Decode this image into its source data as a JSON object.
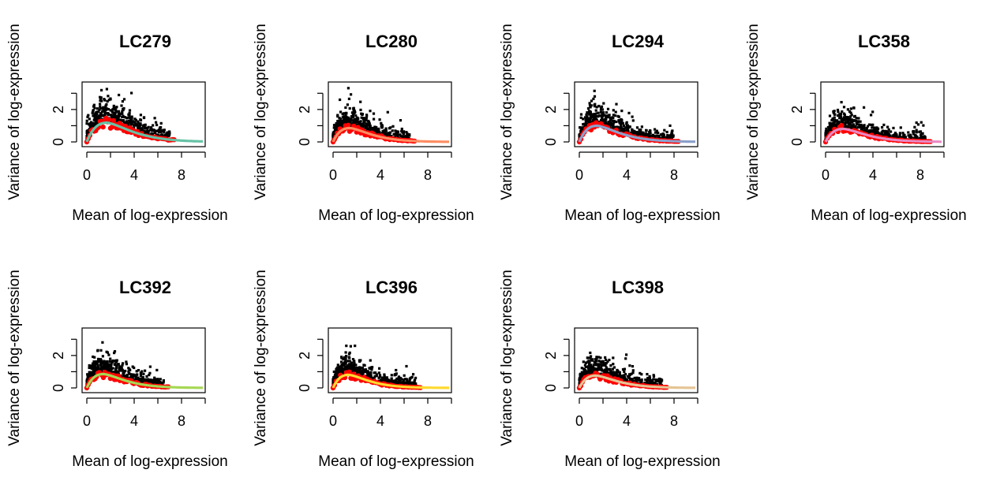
{
  "chart_data": [
    {
      "type": "scatter",
      "title": "LC279",
      "xlabel": "Mean of log-expression",
      "ylabel": "Variance of log-expression",
      "xlim": [
        -0.4,
        10
      ],
      "ylim": [
        0,
        3.5
      ],
      "xticks": [
        "0",
        "4",
        "8"
      ],
      "yticks": [
        "0",
        "2"
      ],
      "grid": false,
      "peak": 1.25,
      "peak_x": 1.7,
      "extent": 7.0,
      "trend_color": "#66c2a5",
      "spike_color": "#ff0000"
    },
    {
      "type": "scatter",
      "title": "LC280",
      "xlabel": "Mean of log-expression",
      "ylabel": "Variance of log-expression",
      "xlim": [
        -0.4,
        10
      ],
      "ylim": [
        0,
        3.5
      ],
      "xticks": [
        "0",
        "4",
        "8"
      ],
      "yticks": [
        "0",
        "2"
      ],
      "grid": false,
      "peak": 0.9,
      "peak_x": 1.4,
      "extent": 6.5,
      "trend_color": "#fc8d62",
      "spike_color": "#ff0000"
    },
    {
      "type": "scatter",
      "title": "LC294",
      "xlabel": "Mean of log-expression",
      "ylabel": "Variance of log-expression",
      "xlim": [
        -0.4,
        10
      ],
      "ylim": [
        0,
        3.5
      ],
      "xticks": [
        "0",
        "4",
        "8"
      ],
      "yticks": [
        "0",
        "2"
      ],
      "grid": false,
      "peak": 1.05,
      "peak_x": 1.5,
      "extent": 8.0,
      "trend_color": "#8da0cb",
      "spike_color": "#ff0000"
    },
    {
      "type": "scatter",
      "title": "LC358",
      "xlabel": "Mean of log-expression",
      "ylabel": "Variance of log-expression",
      "xlim": [
        -0.4,
        10
      ],
      "ylim": [
        0,
        3.5
      ],
      "xticks": [
        "0",
        "4",
        "8"
      ],
      "yticks": [
        "0",
        "2"
      ],
      "grid": false,
      "peak": 0.85,
      "peak_x": 1.5,
      "extent": 8.5,
      "trend_color": "#e78ac3",
      "spike_color": "#ff0000"
    },
    {
      "type": "scatter",
      "title": "LC392",
      "xlabel": "Mean of log-expression",
      "ylabel": "Variance of log-expression",
      "xlim": [
        -0.4,
        10
      ],
      "ylim": [
        0,
        3.5
      ],
      "xticks": [
        "0",
        "4",
        "8"
      ],
      "yticks": [
        "0",
        "2"
      ],
      "grid": false,
      "peak": 0.9,
      "peak_x": 1.4,
      "extent": 6.5,
      "trend_color": "#a6d854",
      "spike_color": "#ff0000"
    },
    {
      "type": "scatter",
      "title": "LC396",
      "xlabel": "Mean of log-expression",
      "ylabel": "Variance of log-expression",
      "xlim": [
        -0.4,
        10
      ],
      "ylim": [
        0,
        3.5
      ],
      "xticks": [
        "0",
        "4",
        "8"
      ],
      "yticks": [
        "0",
        "2"
      ],
      "grid": false,
      "peak": 0.85,
      "peak_x": 1.3,
      "extent": 7.0,
      "trend_color": "#ffd92f",
      "spike_color": "#ff0000"
    },
    {
      "type": "scatter",
      "title": "LC398",
      "xlabel": "Mean of log-expression",
      "ylabel": "Variance of log-expression",
      "xlim": [
        -0.4,
        10
      ],
      "ylim": [
        0,
        3.5
      ],
      "xticks": [
        "0",
        "4",
        "8"
      ],
      "yticks": [
        "0",
        "2"
      ],
      "grid": false,
      "peak": 0.8,
      "peak_x": 1.4,
      "extent": 7.0,
      "trend_color": "#e5c494",
      "spike_color": "#ff0000"
    }
  ]
}
